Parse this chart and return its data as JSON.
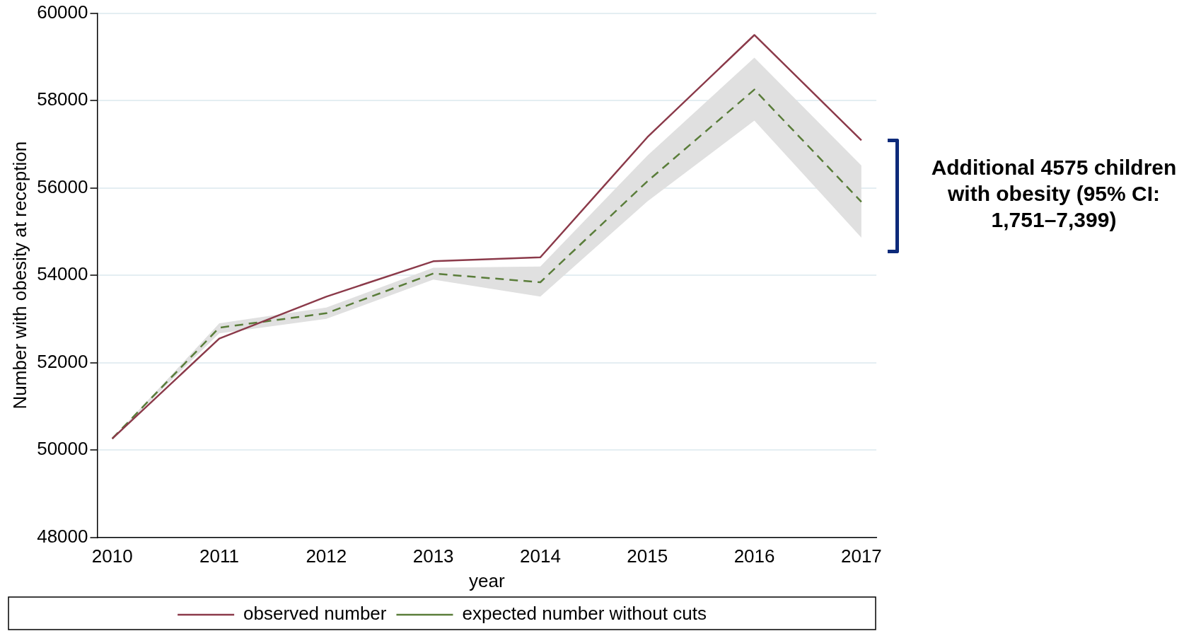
{
  "chart_data": {
    "type": "line",
    "xlabel": "year",
    "ylabel": "Number with obesity at reception",
    "x": [
      2010,
      2011,
      2012,
      2013,
      2014,
      2015,
      2016,
      2017
    ],
    "xlim": [
      2009.86,
      2017.14
    ],
    "xticks": [
      2010,
      2011,
      2012,
      2013,
      2014,
      2015,
      2016,
      2017
    ],
    "ylim": [
      48000,
      60000
    ],
    "yticks": [
      48000,
      50000,
      52000,
      54000,
      56000,
      58000,
      60000
    ],
    "grid": "y",
    "legend": "bottom",
    "series": [
      {
        "name": "observed number",
        "color": "#8b3a4a",
        "line_style": "solid",
        "values": [
          50260,
          52550,
          53510,
          54320,
          54410,
          57160,
          59500,
          57090
        ]
      },
      {
        "name": "expected number without cuts",
        "color": "#5a7d3a",
        "line_style": "dashed",
        "values": [
          50260,
          52800,
          53130,
          54040,
          53840,
          56150,
          58250,
          55680
        ],
        "lower": [
          50260,
          52670,
          53000,
          53900,
          53510,
          55690,
          57540,
          54860
        ],
        "upper": [
          50260,
          52900,
          53260,
          54170,
          54200,
          56740,
          58980,
          56510
        ]
      }
    ],
    "annotations": [
      "Additional 4575 children with obesity (95% CI: 1,751–7,399)"
    ]
  }
}
